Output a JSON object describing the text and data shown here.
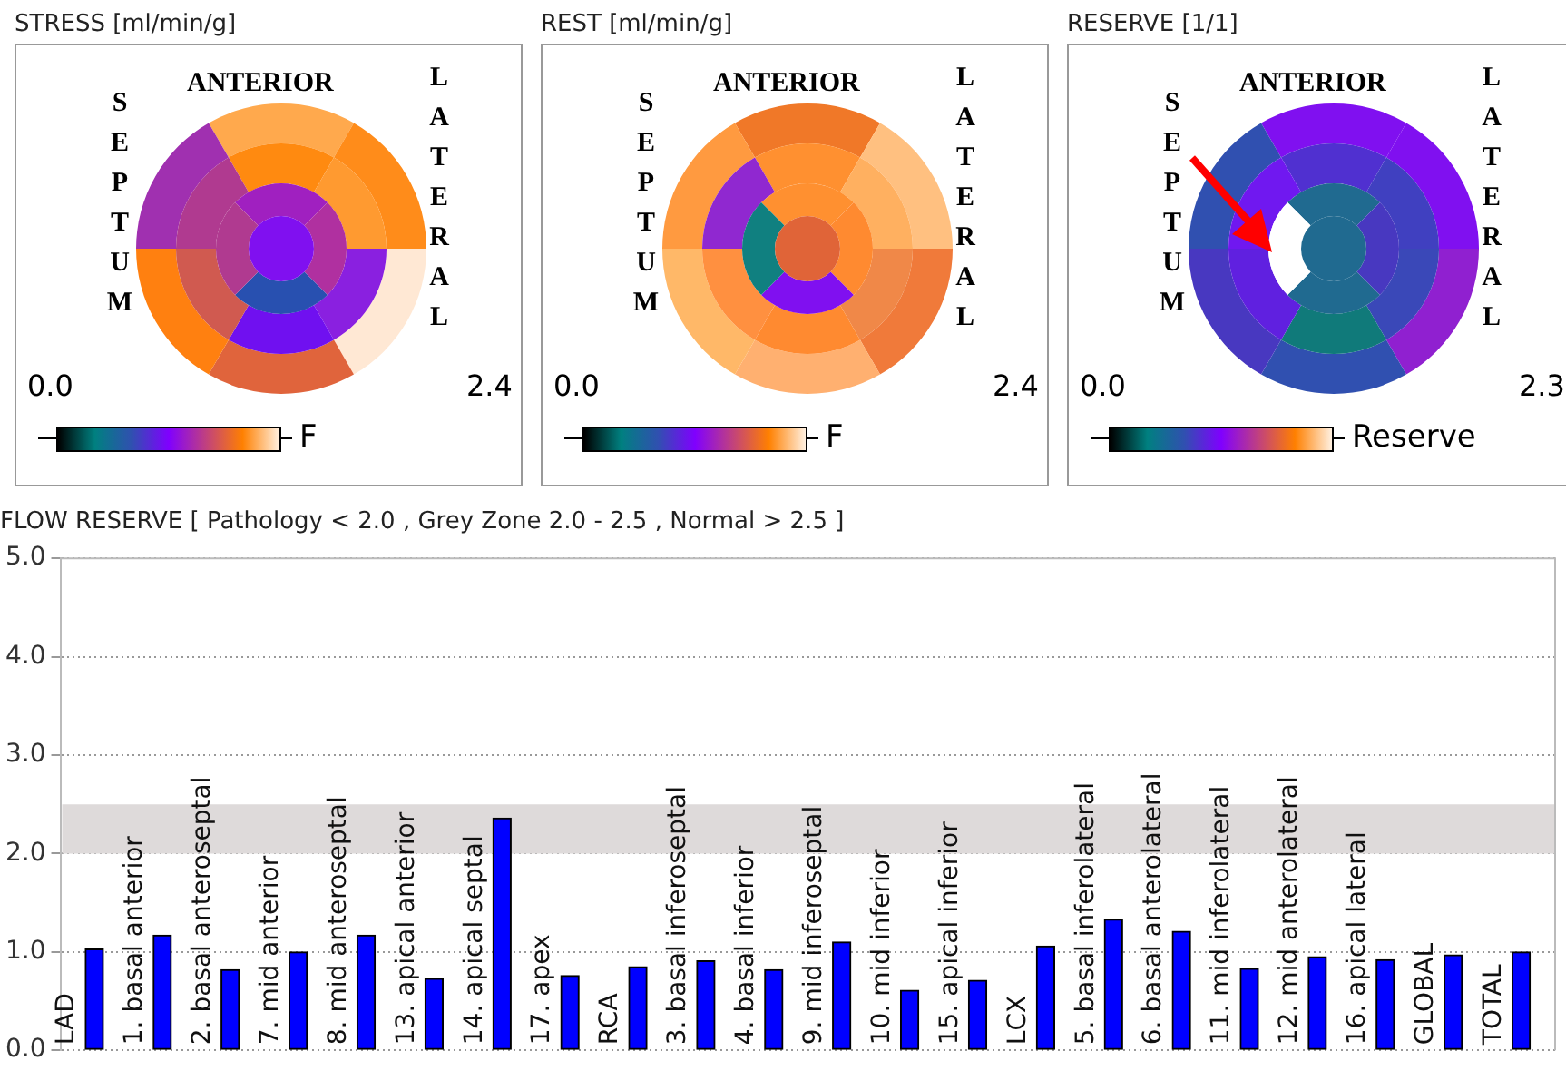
{
  "chart_data": [
    {
      "type": "other",
      "title": "STRESS [ml/min/g]",
      "annotations": [
        "ANTERIOR",
        "SEPTUM",
        "LATERAL",
        "0.0",
        "2.4"
      ],
      "clabel": "F"
    },
    {
      "type": "other",
      "title": "REST [ml/min/g]",
      "annotations": [
        "ANTERIOR",
        "SEPTUM",
        "LATERAL",
        "0.0",
        "2.4"
      ],
      "clabel": "F"
    },
    {
      "type": "other",
      "title": "RESERVE [1/1]",
      "annotations": [
        "ANTERIOR",
        "SEPTUM",
        "LATERAL",
        "0.0",
        "2.3"
      ],
      "clabel": "Reserve"
    },
    {
      "type": "bar",
      "title": "FLOW RESERVE [ Pathology < 2.0 , Grey Zone 2.0 - 2.5 , Normal > 2.5 ]",
      "categories": [
        "LAD",
        "1. basal anterior",
        "2. basal anteroseptal",
        "7. mid anterior",
        "8. mid anteroseptal",
        "13. apical anterior",
        "14. apical septal",
        "17. apex",
        "RCA",
        "3. basal inferoseptal",
        "4. basal inferior",
        "9. mid inferoseptal",
        "10. mid inferior",
        "15. apical inferior",
        "LCX",
        "5. basal inferolateral",
        "6. basal anterolateral",
        "11. mid inferolateral",
        "12. mid anterolateral",
        "16. apical lateral",
        "GLOBAL",
        "TOTAL"
      ],
      "values": [
        1.03,
        1.17,
        0.82,
        1.0,
        1.17,
        0.73,
        2.36,
        0.76,
        0.85,
        0.91,
        0.82,
        1.1,
        0.61,
        0.71,
        1.06,
        1.33,
        1.21,
        0.83,
        0.95,
        0.92,
        0.97,
        1.0
      ],
      "color": "#0000ff",
      "ylim": [
        0,
        5
      ],
      "yticks": [
        {
          "value": 0,
          "label": "0.0"
        },
        {
          "value": 1,
          "label": "1.0"
        },
        {
          "value": 2,
          "label": "2.0"
        },
        {
          "value": 3,
          "label": "3.0"
        },
        {
          "value": 4,
          "label": "4.0"
        },
        {
          "value": 5,
          "label": "5.0"
        }
      ],
      "grid": "y",
      "bands": [
        {
          "axis": "y",
          "from": 2.0,
          "to": 2.5,
          "color": "#dedada"
        }
      ]
    }
  ]
}
